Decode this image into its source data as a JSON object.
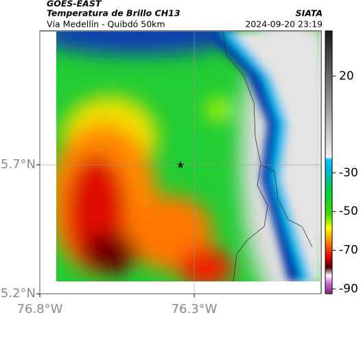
{
  "header": {
    "title": "GOES-EAST",
    "subtitle": "Temperatura de Brillo CH13",
    "location": "Vía Medellín - Quibdó 50km",
    "source": "SIATA",
    "timestamp": "2024-09-20 23:19"
  },
  "map": {
    "xlim": [
      -76.8,
      -75.889
    ],
    "ylim": [
      5.2,
      6.219
    ],
    "xticks": [
      {
        "value": -76.8,
        "label": "76.8°W"
      },
      {
        "value": -76.3,
        "label": "76.3°W"
      }
    ],
    "yticks": [
      {
        "value": 5.7,
        "label": "5.7°N"
      },
      {
        "value": 5.2,
        "label": "5.2°N"
      }
    ]
  },
  "colorbar": {
    "lim": [
      -92.5,
      43.4
    ],
    "ticks": [
      20,
      -30,
      -50,
      -70,
      -90
    ]
  }
}
